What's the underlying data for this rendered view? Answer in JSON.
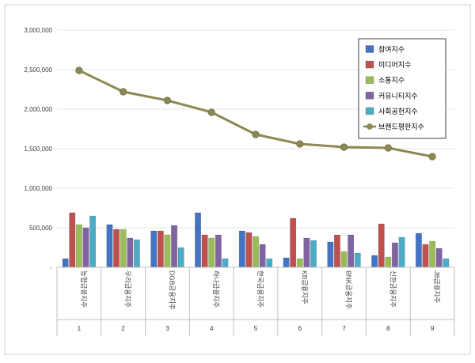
{
  "chart_data": {
    "type": "bar",
    "categories": [
      "농협금융지주",
      "우리금융지주",
      "DGB금융지주",
      "하나금융지주",
      "한국금융지주",
      "KB금융지주",
      "BNK금융지주",
      "신한금융지주",
      "JB금융지주"
    ],
    "rank_labels": [
      "1",
      "2",
      "3",
      "4",
      "5",
      "6",
      "7",
      "8",
      "9"
    ],
    "ylim": [
      0,
      3000000
    ],
    "yticks": [
      0,
      500000,
      1000000,
      1500000,
      2000000,
      2500000,
      3000000
    ],
    "ytick_labels": [
      "-",
      "500,000",
      "1,000,000",
      "1,500,000",
      "2,000,000",
      "2,500,000",
      "3,000,000"
    ],
    "series": [
      {
        "name": "참여지수",
        "color": "#4472C4",
        "values": [
          110000,
          540000,
          460000,
          690000,
          460000,
          120000,
          320000,
          150000,
          430000
        ]
      },
      {
        "name": "미디어지수",
        "color": "#C0504D",
        "values": [
          690000,
          480000,
          460000,
          410000,
          440000,
          620000,
          410000,
          550000,
          290000
        ]
      },
      {
        "name": "소통지수",
        "color": "#9BBB59",
        "values": [
          540000,
          480000,
          410000,
          370000,
          390000,
          110000,
          200000,
          130000,
          330000
        ]
      },
      {
        "name": "커뮤니티지수",
        "color": "#8064A2",
        "values": [
          500000,
          370000,
          530000,
          410000,
          290000,
          370000,
          410000,
          310000,
          240000
        ]
      },
      {
        "name": "사회공헌지수",
        "color": "#4BACC6",
        "values": [
          650000,
          350000,
          250000,
          110000,
          110000,
          340000,
          180000,
          380000,
          110000
        ]
      }
    ],
    "line_series": {
      "name": "브랜드평판지수",
      "color": "#8C8A54",
      "values": [
        2490000,
        2220000,
        2110000,
        1960000,
        1680000,
        1560000,
        1520000,
        1510000,
        1400000
      ]
    }
  }
}
